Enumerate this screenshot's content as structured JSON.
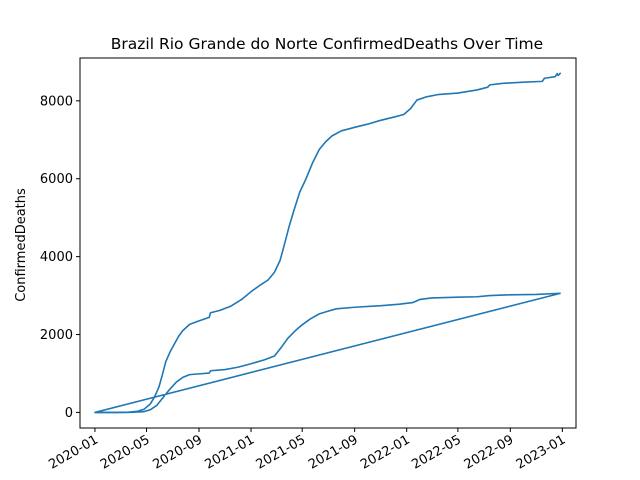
{
  "chart_data": {
    "type": "line",
    "title": "Brazil Rio Grande do Norte ConfirmedDeaths Over Time",
    "xlabel": "",
    "ylabel": "ConfirmedDeaths",
    "xlim": [
      "2019-11-27",
      "2023-02-02"
    ],
    "ylim": [
      -400,
      9100
    ],
    "grid": false,
    "x_ticks": [
      {
        "date": "2020-01-01",
        "label": "2020-01"
      },
      {
        "date": "2020-05-01",
        "label": "2020-05"
      },
      {
        "date": "2020-09-01",
        "label": "2020-09"
      },
      {
        "date": "2021-01-01",
        "label": "2021-01"
      },
      {
        "date": "2021-05-01",
        "label": "2021-05"
      },
      {
        "date": "2021-09-01",
        "label": "2021-09"
      },
      {
        "date": "2022-01-01",
        "label": "2022-01"
      },
      {
        "date": "2022-05-01",
        "label": "2022-05"
      },
      {
        "date": "2022-09-01",
        "label": "2022-09"
      },
      {
        "date": "2023-01-01",
        "label": "2023-01"
      }
    ],
    "y_ticks": [
      {
        "value": 0,
        "label": "0"
      },
      {
        "value": 2000,
        "label": "2000"
      },
      {
        "value": 4000,
        "label": "4000"
      },
      {
        "value": 6000,
        "label": "6000"
      },
      {
        "value": 8000,
        "label": "8000"
      }
    ],
    "series": [
      {
        "color": "#1f77b4",
        "points": [
          {
            "x": "2020-01-01",
            "y": 0
          },
          {
            "x": "2020-02-15",
            "y": 0
          },
          {
            "x": "2020-03-20",
            "y": 5
          },
          {
            "x": "2020-04-10",
            "y": 30
          },
          {
            "x": "2020-04-25",
            "y": 80
          },
          {
            "x": "2020-05-10",
            "y": 220
          },
          {
            "x": "2020-05-20",
            "y": 400
          },
          {
            "x": "2020-05-30",
            "y": 650
          },
          {
            "x": "2020-06-08",
            "y": 1000
          },
          {
            "x": "2020-06-15",
            "y": 1300
          },
          {
            "x": "2020-06-25",
            "y": 1550
          },
          {
            "x": "2020-07-05",
            "y": 1750
          },
          {
            "x": "2020-07-15",
            "y": 1950
          },
          {
            "x": "2020-07-25",
            "y": 2100
          },
          {
            "x": "2020-08-10",
            "y": 2260
          },
          {
            "x": "2020-09-01",
            "y": 2350
          },
          {
            "x": "2020-09-25",
            "y": 2440
          },
          {
            "x": "2020-09-28",
            "y": 2560
          },
          {
            "x": "2020-10-20",
            "y": 2620
          },
          {
            "x": "2020-11-15",
            "y": 2730
          },
          {
            "x": "2020-12-10",
            "y": 2900
          },
          {
            "x": "2021-01-01",
            "y": 3100
          },
          {
            "x": "2021-01-20",
            "y": 3250
          },
          {
            "x": "2021-02-10",
            "y": 3400
          },
          {
            "x": "2021-02-25",
            "y": 3600
          },
          {
            "x": "2021-03-10",
            "y": 3900
          },
          {
            "x": "2021-03-20",
            "y": 4300
          },
          {
            "x": "2021-04-01",
            "y": 4800
          },
          {
            "x": "2021-04-12",
            "y": 5200
          },
          {
            "x": "2021-04-25",
            "y": 5650
          },
          {
            "x": "2021-05-10",
            "y": 6000
          },
          {
            "x": "2021-05-25",
            "y": 6400
          },
          {
            "x": "2021-06-10",
            "y": 6750
          },
          {
            "x": "2021-06-25",
            "y": 6950
          },
          {
            "x": "2021-07-10",
            "y": 7100
          },
          {
            "x": "2021-08-01",
            "y": 7230
          },
          {
            "x": "2021-09-01",
            "y": 7320
          },
          {
            "x": "2021-10-01",
            "y": 7400
          },
          {
            "x": "2021-11-01",
            "y": 7500
          },
          {
            "x": "2021-12-01",
            "y": 7580
          },
          {
            "x": "2021-12-25",
            "y": 7650
          },
          {
            "x": "2022-01-10",
            "y": 7800
          },
          {
            "x": "2022-01-25",
            "y": 8020
          },
          {
            "x": "2022-02-15",
            "y": 8100
          },
          {
            "x": "2022-03-15",
            "y": 8160
          },
          {
            "x": "2022-05-01",
            "y": 8200
          },
          {
            "x": "2022-06-15",
            "y": 8280
          },
          {
            "x": "2022-07-10",
            "y": 8350
          },
          {
            "x": "2022-07-15",
            "y": 8410
          },
          {
            "x": "2022-08-15",
            "y": 8450
          },
          {
            "x": "2022-10-01",
            "y": 8480
          },
          {
            "x": "2022-11-15",
            "y": 8500
          },
          {
            "x": "2022-11-20",
            "y": 8580
          },
          {
            "x": "2022-12-15",
            "y": 8620
          },
          {
            "x": "2022-12-20",
            "y": 8700
          },
          {
            "x": "2022-12-22",
            "y": 8650
          },
          {
            "x": "2022-12-28",
            "y": 8720
          }
        ]
      },
      {
        "color": "#1f77b4",
        "points": [
          {
            "x": "2022-12-28",
            "y": 3060
          },
          {
            "x": "2020-01-01",
            "y": 0
          },
          {
            "x": "2020-03-15",
            "y": 0
          },
          {
            "x": "2020-04-25",
            "y": 20
          },
          {
            "x": "2020-05-10",
            "y": 70
          },
          {
            "x": "2020-05-25",
            "y": 180
          },
          {
            "x": "2020-06-10",
            "y": 400
          },
          {
            "x": "2020-06-25",
            "y": 600
          },
          {
            "x": "2020-07-10",
            "y": 780
          },
          {
            "x": "2020-07-25",
            "y": 900
          },
          {
            "x": "2020-08-10",
            "y": 970
          },
          {
            "x": "2020-09-01",
            "y": 990
          },
          {
            "x": "2020-09-25",
            "y": 1010
          },
          {
            "x": "2020-09-28",
            "y": 1070
          },
          {
            "x": "2020-11-01",
            "y": 1100
          },
          {
            "x": "2020-12-01",
            "y": 1160
          },
          {
            "x": "2021-01-01",
            "y": 1250
          },
          {
            "x": "2021-02-01",
            "y": 1350
          },
          {
            "x": "2021-02-25",
            "y": 1450
          },
          {
            "x": "2021-03-15",
            "y": 1700
          },
          {
            "x": "2021-03-28",
            "y": 1900
          },
          {
            "x": "2021-04-15",
            "y": 2100
          },
          {
            "x": "2021-05-01",
            "y": 2250
          },
          {
            "x": "2021-05-20",
            "y": 2400
          },
          {
            "x": "2021-06-10",
            "y": 2530
          },
          {
            "x": "2021-07-01",
            "y": 2600
          },
          {
            "x": "2021-07-20",
            "y": 2660
          },
          {
            "x": "2021-09-01",
            "y": 2700
          },
          {
            "x": "2021-11-01",
            "y": 2740
          },
          {
            "x": "2021-12-15",
            "y": 2780
          },
          {
            "x": "2022-01-15",
            "y": 2820
          },
          {
            "x": "2022-02-01",
            "y": 2900
          },
          {
            "x": "2022-03-01",
            "y": 2940
          },
          {
            "x": "2022-05-01",
            "y": 2960
          },
          {
            "x": "2022-06-15",
            "y": 2970
          },
          {
            "x": "2022-07-15",
            "y": 3000
          },
          {
            "x": "2022-09-01",
            "y": 3020
          },
          {
            "x": "2022-11-01",
            "y": 3030
          },
          {
            "x": "2022-12-28",
            "y": 3060
          }
        ]
      }
    ]
  }
}
